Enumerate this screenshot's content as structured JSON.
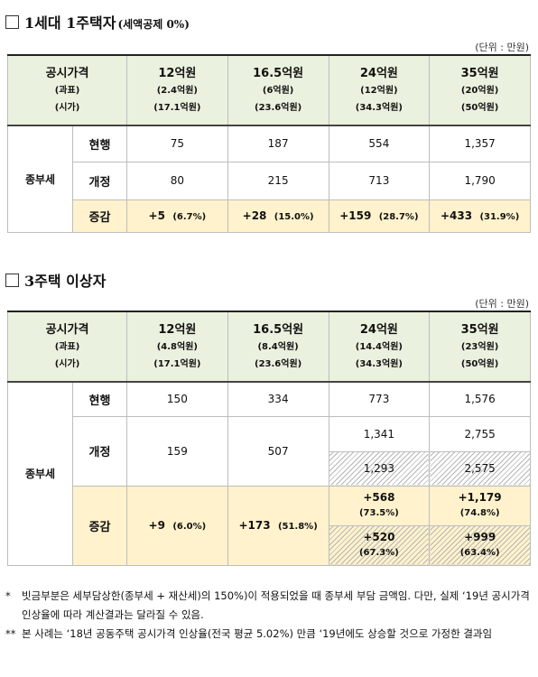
{
  "section1": {
    "title": "1세대 1주택자",
    "subtitle": "(세액공제 0%)",
    "unit": "(단위 : 만원)",
    "header": {
      "label_main": "공시가격",
      "label_tax": "(과표)",
      "label_market": "(시가)",
      "columns": [
        {
          "price": "12억원",
          "tax": "(2.4억원)",
          "market": "(17.1억원)"
        },
        {
          "price": "16.5억원",
          "tax": "(6억원)",
          "market": "(23.6억원)"
        },
        {
          "price": "24억원",
          "tax": "(12억원)",
          "market": "(34.3억원)"
        },
        {
          "price": "35억원",
          "tax": "(20억원)",
          "market": "(50억원)"
        }
      ]
    },
    "group_label": "종부세",
    "rows": {
      "current_label": "현행",
      "current": [
        "75",
        "187",
        "554",
        "1,357"
      ],
      "revised_label": "개정",
      "revised": [
        "80",
        "215",
        "713",
        "1,790"
      ],
      "change_label": "증감",
      "change": [
        {
          "value": "+5",
          "pct": "(6.7%)"
        },
        {
          "value": "+28",
          "pct": "(15.0%)"
        },
        {
          "value": "+159",
          "pct": "(28.7%)"
        },
        {
          "value": "+433",
          "pct": "(31.9%)"
        }
      ]
    }
  },
  "section2": {
    "title": "3주택 이상자",
    "unit": "(단위 : 만원)",
    "header": {
      "label_main": "공시가격",
      "label_tax": "(과표)",
      "label_market": "(시가)",
      "columns": [
        {
          "price": "12억원",
          "tax": "(4.8억원)",
          "market": "(17.1억원)"
        },
        {
          "price": "16.5억원",
          "tax": "(8.4억원)",
          "market": "(23.6억원)"
        },
        {
          "price": "24억원",
          "tax": "(14.4억원)",
          "market": "(34.3억원)"
        },
        {
          "price": "35억원",
          "tax": "(23억원)",
          "market": "(50억원)"
        }
      ]
    },
    "group_label": "종부세",
    "rows": {
      "current_label": "현행",
      "current": [
        "150",
        "334",
        "773",
        "1,576"
      ],
      "revised_label": "개정",
      "revised": [
        "159",
        "507"
      ],
      "revised_upper": [
        "1,341",
        "2,755"
      ],
      "revised_lower": [
        "1,293",
        "2,575"
      ],
      "change_label": "증감",
      "change": [
        {
          "value": "+9",
          "pct": "(6.0%)"
        },
        {
          "value": "+173",
          "pct": "(51.8%)"
        }
      ],
      "change_upper": [
        {
          "value": "+568",
          "pct": "(73.5%)"
        },
        {
          "value": "+1,179",
          "pct": "(74.8%)"
        }
      ],
      "change_lower": [
        {
          "value": "+520",
          "pct": "(67.3%)"
        },
        {
          "value": "+999",
          "pct": "(63.4%)"
        }
      ]
    }
  },
  "notes": [
    {
      "mark": "*",
      "text": "빗금부분은 세부담상한(종부세 + 재산세)의 150%)이 적용되었을 때 종부세 부담 금액임. 다만, 실제 ‘19년 공시가격 인상율에 따라 계산결과는 달라질 수 있음."
    },
    {
      "mark": "**",
      "text": "본 사례는 ‘18년 공동주택 공시가격 인상율(전국 평균 5.02%) 만큼 ‘19년에도 상승할 것으로 가정한 결과임"
    }
  ]
}
